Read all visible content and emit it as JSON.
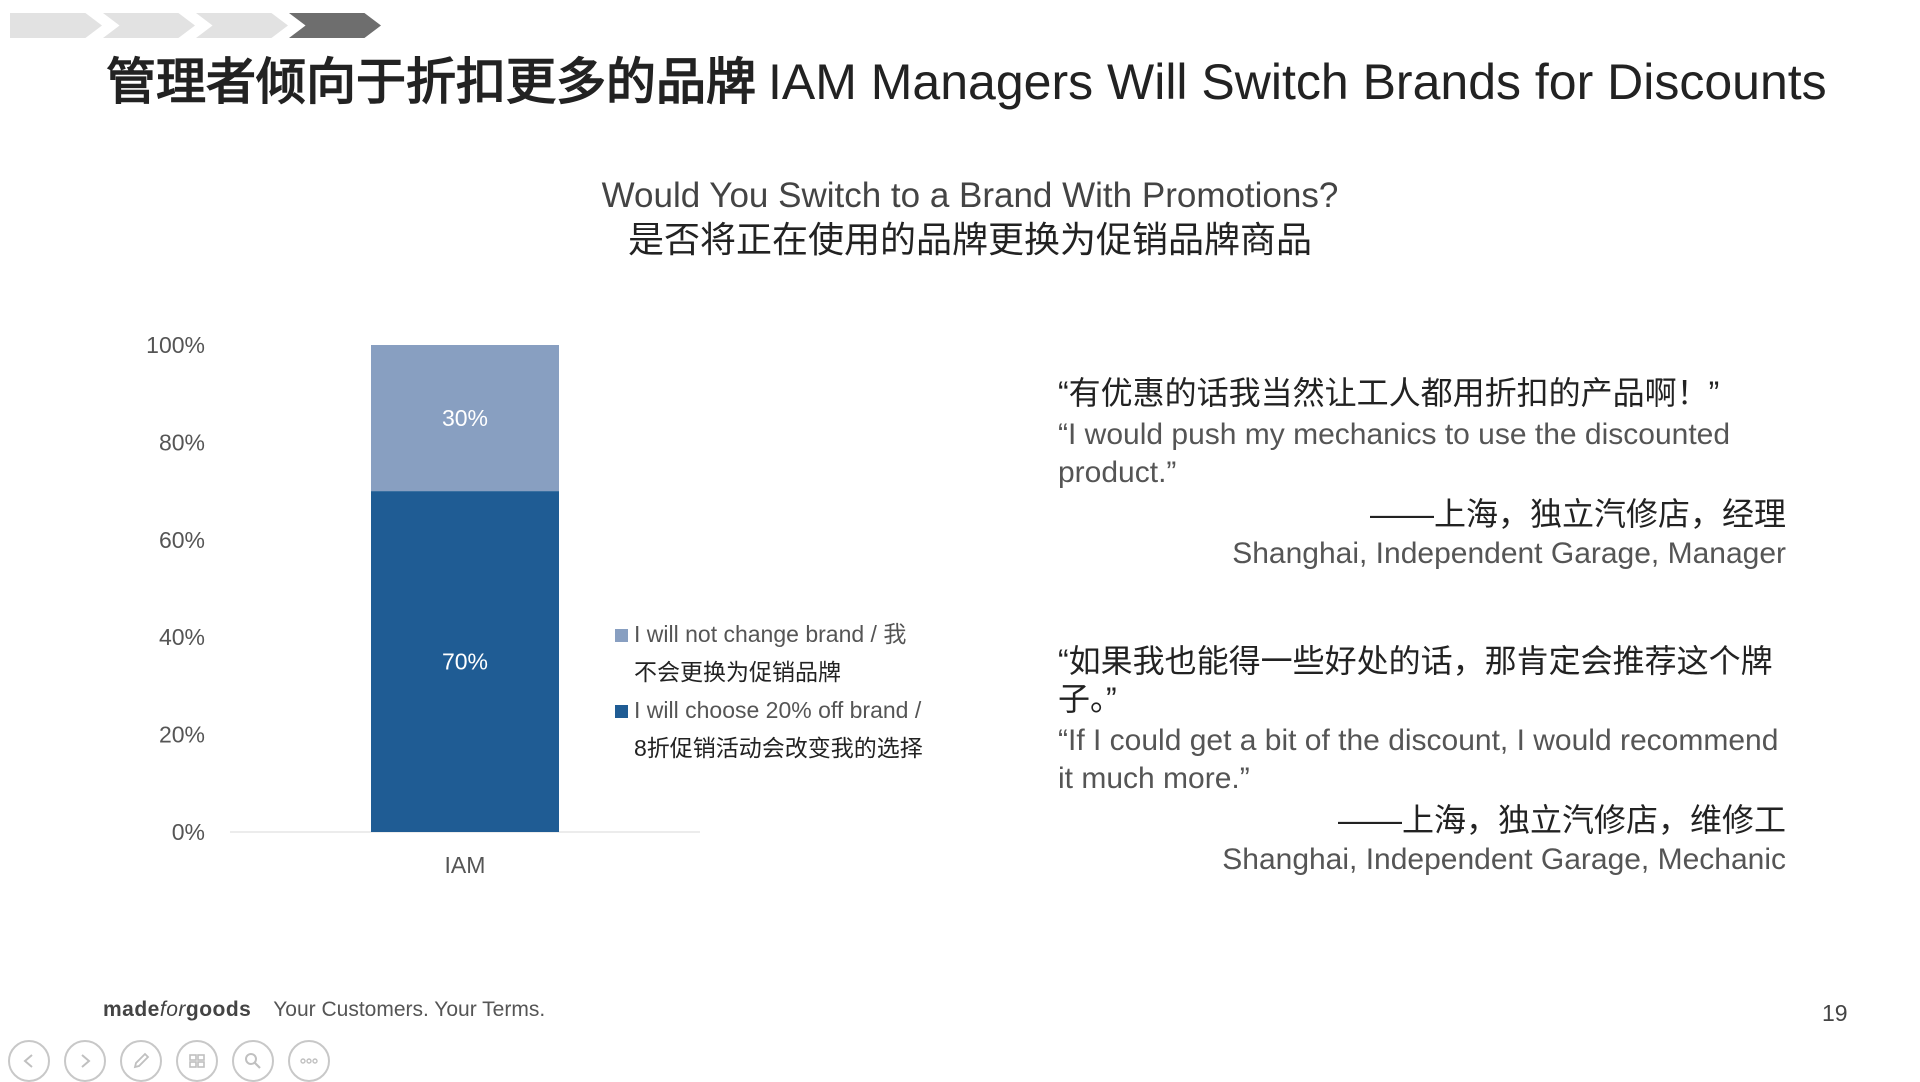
{
  "header": {
    "title_zh": "管理者倾向于折扣更多的品牌",
    "title_en": "IAM Managers Will Switch Brands for Discounts"
  },
  "chart_data": {
    "type": "bar",
    "stacked": true,
    "title": "Would You Switch to a Brand With Promotions?",
    "subtitle": "是否将正在使用的品牌更换为促销品牌商品",
    "categories": [
      "IAM"
    ],
    "ylim": [
      0,
      100
    ],
    "yticks": [
      "0%",
      "20%",
      "40%",
      "60%",
      "80%",
      "100%"
    ],
    "series": [
      {
        "name_en": "I will choose 20% off brand /",
        "name_zh": "8折促销活动会改变我的选择",
        "values": [
          70
        ],
        "label": "70%",
        "color": "#1f5c94"
      },
      {
        "name_en": "I will not change brand / 我",
        "name_zh": "不会更换为促销品牌",
        "values": [
          30
        ],
        "label": "30%",
        "color": "#889fc1"
      }
    ],
    "grid": false,
    "legend_position": "right"
  },
  "quotes": [
    {
      "zh": "“有优惠的话我当然让工人都用折扣的产品啊！”",
      "en": "“I would push my mechanics to use the discounted product.”",
      "source_zh": "——上海，独立汽修店，经理",
      "source_en": "Shanghai, Independent Garage, Manager"
    },
    {
      "zh": "“如果我也能得一些好处的话，那肯定会推荐这个牌子。”",
      "en": "“If I could get a bit of the discount, I would recommend it much more.”",
      "source_zh": "——上海，独立汽修店，维修工",
      "source_en": "Shanghai, Independent Garage, Mechanic"
    }
  ],
  "footer": {
    "brand_made": "made",
    "brand_for": "for",
    "brand_goods": "goods",
    "tagline": "Your Customers. Your Terms.",
    "page_number": "19"
  },
  "controls": [
    "previous-icon",
    "next-icon",
    "pen-icon",
    "slides-icon",
    "zoom-icon",
    "more-icon"
  ]
}
